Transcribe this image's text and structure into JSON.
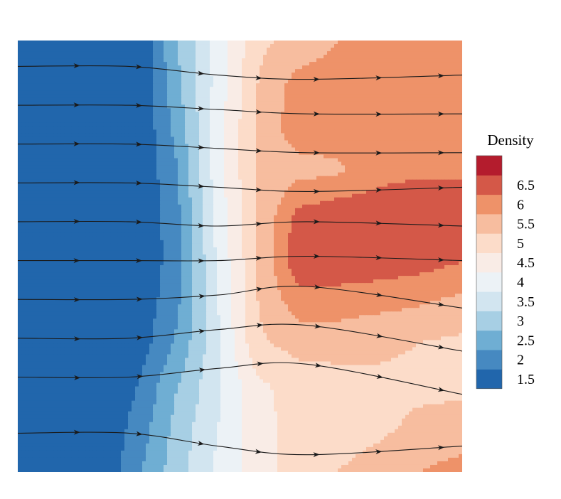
{
  "chart_data": {
    "type": "heatmap",
    "subtype": "filled-contour-with-streamlines",
    "title": "",
    "xlabel": "",
    "ylabel": "",
    "field": "Density",
    "xlim": [
      0,
      1
    ],
    "ylim": [
      0,
      1
    ],
    "colorbar": {
      "title": "Density",
      "levels": [
        1.5,
        2,
        2.5,
        3,
        3.5,
        4,
        4.5,
        5,
        5.5,
        6,
        6.5,
        7
      ],
      "tick_labels": [
        "1.5",
        "2",
        "2.5",
        "3",
        "3.5",
        "4",
        "4.5",
        "5",
        "5.5",
        "6",
        "6.5"
      ],
      "colors": [
        "#2166ac",
        "#4689c1",
        "#6faed3",
        "#a7cfe4",
        "#d2e5f0",
        "#ecf2f6",
        "#f9ece6",
        "#fcdcc9",
        "#f7bd9f",
        "#ee9269",
        "#d45848",
        "#b41c2d"
      ]
    },
    "grid": {
      "x": [
        0,
        0.09,
        0.18,
        0.27,
        0.36,
        0.45,
        0.54,
        0.63,
        0.72,
        0.81,
        0.9,
        1.0
      ],
      "y": [
        1.0,
        0.9,
        0.8,
        0.7,
        0.6,
        0.5,
        0.4,
        0.3,
        0.2,
        0.1,
        0.0
      ],
      "values": [
        [
          1.5,
          1.5,
          1.5,
          1.5,
          3.0,
          4.2,
          5.4,
          5.6,
          6.0,
          6.2,
          6.2,
          6.2
        ],
        [
          1.5,
          1.5,
          1.5,
          1.5,
          2.9,
          4.2,
          5.5,
          6.2,
          6.3,
          6.3,
          6.3,
          6.3
        ],
        [
          1.5,
          1.5,
          1.5,
          1.5,
          2.7,
          4.3,
          5.6,
          6.3,
          6.3,
          6.4,
          6.4,
          6.4
        ],
        [
          1.5,
          1.5,
          1.5,
          1.5,
          2.5,
          4.3,
          5.6,
          5.8,
          5.9,
          6.3,
          6.4,
          6.4
        ],
        [
          1.5,
          1.5,
          1.5,
          1.5,
          2.4,
          4.2,
          5.5,
          6.6,
          6.8,
          6.8,
          6.9,
          6.9
        ],
        [
          1.5,
          1.5,
          1.5,
          1.5,
          2.3,
          4.1,
          5.5,
          6.9,
          6.9,
          6.9,
          6.8,
          6.6
        ],
        [
          1.5,
          1.5,
          1.5,
          1.6,
          2.4,
          4.0,
          5.5,
          6.3,
          6.3,
          6.2,
          6.1,
          5.9
        ],
        [
          1.5,
          1.5,
          1.5,
          1.7,
          2.6,
          3.9,
          5.4,
          5.7,
          5.7,
          5.6,
          5.5,
          5.4
        ],
        [
          1.5,
          1.5,
          1.5,
          2.0,
          3.0,
          3.9,
          4.9,
          5.2,
          5.3,
          5.4,
          5.4,
          5.4
        ],
        [
          1.5,
          1.5,
          1.5,
          2.2,
          3.2,
          4.0,
          4.8,
          5.2,
          5.3,
          5.4,
          5.6,
          5.7
        ],
        [
          1.5,
          1.5,
          1.5,
          2.4,
          3.3,
          4.1,
          4.8,
          5.2,
          5.5,
          5.7,
          6.0,
          6.2
        ]
      ]
    },
    "streamlines": [
      {
        "y0": 0.94,
        "points": [
          [
            0.0,
            0.94
          ],
          [
            0.25,
            0.94
          ],
          [
            0.45,
            0.92
          ],
          [
            0.65,
            0.91
          ],
          [
            1.0,
            0.92
          ]
        ]
      },
      {
        "y0": 0.85,
        "points": [
          [
            0.0,
            0.85
          ],
          [
            0.25,
            0.85
          ],
          [
            0.45,
            0.84
          ],
          [
            0.65,
            0.83
          ],
          [
            1.0,
            0.83
          ]
        ]
      },
      {
        "y0": 0.76,
        "points": [
          [
            0.0,
            0.76
          ],
          [
            0.25,
            0.76
          ],
          [
            0.45,
            0.75
          ],
          [
            0.65,
            0.74
          ],
          [
            1.0,
            0.74
          ]
        ]
      },
      {
        "y0": 0.67,
        "points": [
          [
            0.0,
            0.67
          ],
          [
            0.25,
            0.67
          ],
          [
            0.45,
            0.66
          ],
          [
            0.65,
            0.65
          ],
          [
            1.0,
            0.66
          ]
        ]
      },
      {
        "y0": 0.58,
        "points": [
          [
            0.0,
            0.58
          ],
          [
            0.25,
            0.58
          ],
          [
            0.45,
            0.57
          ],
          [
            0.65,
            0.58
          ],
          [
            1.0,
            0.57
          ]
        ]
      },
      {
        "y0": 0.49,
        "points": [
          [
            0.0,
            0.49
          ],
          [
            0.25,
            0.49
          ],
          [
            0.45,
            0.49
          ],
          [
            0.65,
            0.5
          ],
          [
            1.0,
            0.49
          ]
        ]
      },
      {
        "y0": 0.4,
        "points": [
          [
            0.0,
            0.4
          ],
          [
            0.25,
            0.4
          ],
          [
            0.45,
            0.41
          ],
          [
            0.65,
            0.43
          ],
          [
            1.0,
            0.38
          ]
        ]
      },
      {
        "y0": 0.31,
        "points": [
          [
            0.0,
            0.31
          ],
          [
            0.25,
            0.31
          ],
          [
            0.45,
            0.33
          ],
          [
            0.65,
            0.34
          ],
          [
            1.0,
            0.28
          ]
        ]
      },
      {
        "y0": 0.22,
        "points": [
          [
            0.0,
            0.22
          ],
          [
            0.25,
            0.22
          ],
          [
            0.45,
            0.24
          ],
          [
            0.65,
            0.25
          ],
          [
            1.0,
            0.18
          ]
        ]
      },
      {
        "y0": 0.09,
        "points": [
          [
            0.0,
            0.09
          ],
          [
            0.25,
            0.09
          ],
          [
            0.45,
            0.06
          ],
          [
            0.65,
            0.04
          ],
          [
            1.0,
            0.06
          ]
        ]
      }
    ]
  }
}
